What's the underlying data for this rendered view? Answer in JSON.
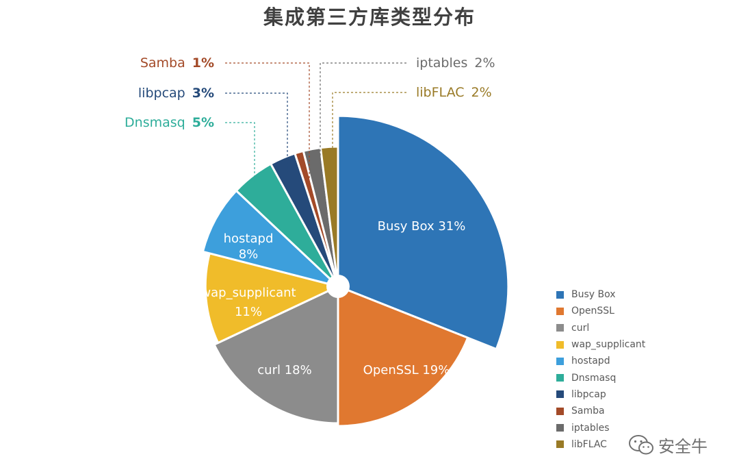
{
  "title": "集成第三方库类型分布",
  "watermark": {
    "text": "安全牛",
    "icon": "wechat-icon"
  },
  "chart_data": {
    "type": "pie",
    "title": "集成第三方库类型分布",
    "legend_position": "bottom-right",
    "slices": [
      {
        "name": "Busy Box",
        "value": 31,
        "label": "31%",
        "color": "#2E75B6",
        "exploded": true
      },
      {
        "name": "OpenSSL",
        "value": 19,
        "label": "19%",
        "color": "#E07830"
      },
      {
        "name": "curl",
        "value": 18,
        "label": "18%",
        "color": "#8C8C8C"
      },
      {
        "name": "wap_supplicant",
        "value": 11,
        "label": "11%",
        "color": "#F0BC2A"
      },
      {
        "name": "hostapd",
        "value": 8,
        "label": "8%",
        "color": "#3D9FDC"
      },
      {
        "name": "Dnsmasq",
        "value": 5,
        "label": "5%",
        "color": "#2EAD9A"
      },
      {
        "name": "libpcap",
        "value": 3,
        "label": "3%",
        "color": "#254A7A"
      },
      {
        "name": "Samba",
        "value": 1,
        "label": "1%",
        "color": "#A34A28"
      },
      {
        "name": "iptables",
        "value": 2,
        "label": "2%",
        "color": "#6B6B6B"
      },
      {
        "name": "libFLAC",
        "value": 2,
        "label": "2%",
        "color": "#997A26"
      }
    ]
  }
}
